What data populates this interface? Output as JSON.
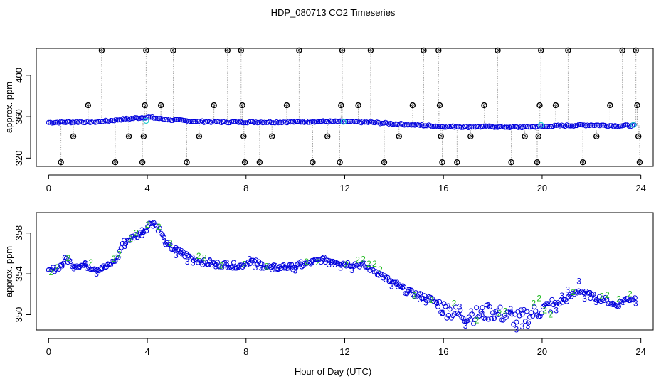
{
  "title": "HDP_080713  CO2 Timeseries",
  "xlabel": "Hour of Day (UTC)",
  "colors": {
    "blue": "#0000dd",
    "cyan": "#22cccc",
    "green": "#22bb22",
    "black": "#000000",
    "gray": "#888888"
  },
  "chart_data": [
    {
      "type": "scatter",
      "panel": "top",
      "ylabel": "approx. ppm",
      "xlim": [
        -0.5,
        24.5
      ],
      "ylim": [
        312,
        426
      ],
      "xticks": [
        0,
        4,
        8,
        12,
        16,
        20,
        24
      ],
      "yticks": [
        320,
        360,
        400
      ],
      "outlier_levels": [
        316,
        341,
        371,
        424
      ],
      "outliers": [
        {
          "x": 0.5,
          "y": 316
        },
        {
          "x": 1.0,
          "y": 341
        },
        {
          "x": 1.6,
          "y": 371
        },
        {
          "x": 2.15,
          "y": 424
        },
        {
          "x": 2.7,
          "y": 316
        },
        {
          "x": 3.25,
          "y": 341
        },
        {
          "x": 3.8,
          "y": 316
        },
        {
          "x": 3.85,
          "y": 341
        },
        {
          "x": 3.9,
          "y": 371
        },
        {
          "x": 3.95,
          "y": 424
        },
        {
          "x": 4.55,
          "y": 371
        },
        {
          "x": 5.05,
          "y": 424
        },
        {
          "x": 5.6,
          "y": 316
        },
        {
          "x": 6.1,
          "y": 341
        },
        {
          "x": 6.7,
          "y": 371
        },
        {
          "x": 7.25,
          "y": 424
        },
        {
          "x": 7.8,
          "y": 424
        },
        {
          "x": 7.85,
          "y": 371
        },
        {
          "x": 7.9,
          "y": 341
        },
        {
          "x": 7.95,
          "y": 316
        },
        {
          "x": 8.55,
          "y": 316
        },
        {
          "x": 9.05,
          "y": 341
        },
        {
          "x": 9.65,
          "y": 371
        },
        {
          "x": 10.15,
          "y": 424
        },
        {
          "x": 10.7,
          "y": 316
        },
        {
          "x": 11.3,
          "y": 341
        },
        {
          "x": 11.8,
          "y": 316
        },
        {
          "x": 11.85,
          "y": 371
        },
        {
          "x": 11.9,
          "y": 424
        },
        {
          "x": 12.55,
          "y": 371
        },
        {
          "x": 13.05,
          "y": 424
        },
        {
          "x": 13.6,
          "y": 316
        },
        {
          "x": 14.2,
          "y": 341
        },
        {
          "x": 14.75,
          "y": 371
        },
        {
          "x": 15.2,
          "y": 424
        },
        {
          "x": 15.8,
          "y": 424
        },
        {
          "x": 15.85,
          "y": 371
        },
        {
          "x": 15.9,
          "y": 341
        },
        {
          "x": 15.95,
          "y": 316
        },
        {
          "x": 16.55,
          "y": 316
        },
        {
          "x": 17.1,
          "y": 341
        },
        {
          "x": 17.65,
          "y": 371
        },
        {
          "x": 18.2,
          "y": 424
        },
        {
          "x": 18.75,
          "y": 316
        },
        {
          "x": 19.3,
          "y": 341
        },
        {
          "x": 19.8,
          "y": 316
        },
        {
          "x": 19.85,
          "y": 341
        },
        {
          "x": 19.9,
          "y": 371
        },
        {
          "x": 19.95,
          "y": 424
        },
        {
          "x": 20.55,
          "y": 371
        },
        {
          "x": 21.05,
          "y": 424
        },
        {
          "x": 21.65,
          "y": 316
        },
        {
          "x": 22.2,
          "y": 341
        },
        {
          "x": 22.75,
          "y": 371
        },
        {
          "x": 23.25,
          "y": 424
        },
        {
          "x": 23.8,
          "y": 424
        },
        {
          "x": 23.85,
          "y": 371
        },
        {
          "x": 23.9,
          "y": 341
        },
        {
          "x": 23.95,
          "y": 316
        }
      ],
      "highlights": [
        {
          "x": 3.95,
          "y": 356
        },
        {
          "x": 11.95,
          "y": 355
        },
        {
          "x": 19.95,
          "y": 352
        },
        {
          "x": 23.7,
          "y": 352
        }
      ],
      "baseline": [
        {
          "x": 0,
          "y": 354.4
        },
        {
          "x": 1,
          "y": 354.8
        },
        {
          "x": 2,
          "y": 354.9
        },
        {
          "x": 3,
          "y": 357.5
        },
        {
          "x": 4,
          "y": 359.5
        },
        {
          "x": 5,
          "y": 356.8
        },
        {
          "x": 6,
          "y": 355.3
        },
        {
          "x": 7,
          "y": 354.8
        },
        {
          "x": 8,
          "y": 354.8
        },
        {
          "x": 9,
          "y": 354.7
        },
        {
          "x": 10,
          "y": 354.9
        },
        {
          "x": 11,
          "y": 355.4
        },
        {
          "x": 12,
          "y": 355.1
        },
        {
          "x": 13,
          "y": 354.5
        },
        {
          "x": 14,
          "y": 353.2
        },
        {
          "x": 15,
          "y": 351.8
        },
        {
          "x": 16,
          "y": 350.6
        },
        {
          "x": 17,
          "y": 350.2
        },
        {
          "x": 18,
          "y": 350.4
        },
        {
          "x": 19,
          "y": 349.8
        },
        {
          "x": 20,
          "y": 350.6
        },
        {
          "x": 21,
          "y": 351.4
        },
        {
          "x": 22,
          "y": 352.0
        },
        {
          "x": 23,
          "y": 351.2
        },
        {
          "x": 23.8,
          "y": 351.5
        }
      ]
    },
    {
      "type": "scatter",
      "panel": "bottom",
      "ylabel": "approx. ppm",
      "xlim": [
        -0.5,
        24.5
      ],
      "ylim": [
        348.5,
        360
      ],
      "xticks": [
        0,
        4,
        8,
        12,
        16,
        20,
        24
      ],
      "yticks": [
        350,
        354,
        358
      ],
      "markers": [
        "3",
        "2"
      ],
      "trend": [
        {
          "x": 0,
          "y": 354.2
        },
        {
          "x": 0.5,
          "y": 354.8
        },
        {
          "x": 0.7,
          "y": 355.5
        },
        {
          "x": 1,
          "y": 354.9
        },
        {
          "x": 1.5,
          "y": 354.8
        },
        {
          "x": 2,
          "y": 354.5
        },
        {
          "x": 2.4,
          "y": 354.7
        },
        {
          "x": 2.8,
          "y": 355.6
        },
        {
          "x": 3,
          "y": 357.0
        },
        {
          "x": 3.5,
          "y": 357.7
        },
        {
          "x": 3.8,
          "y": 358.0
        },
        {
          "x": 4.2,
          "y": 359.2
        },
        {
          "x": 4.5,
          "y": 358.3
        },
        {
          "x": 4.8,
          "y": 356.8
        },
        {
          "x": 5.5,
          "y": 355.9
        },
        {
          "x": 6.3,
          "y": 355.1
        },
        {
          "x": 7,
          "y": 354.9
        },
        {
          "x": 7.8,
          "y": 354.8
        },
        {
          "x": 8.2,
          "y": 355.3
        },
        {
          "x": 8.6,
          "y": 354.9
        },
        {
          "x": 9,
          "y": 354.6
        },
        {
          "x": 10,
          "y": 354.7
        },
        {
          "x": 10.5,
          "y": 355.0
        },
        {
          "x": 11,
          "y": 355.4
        },
        {
          "x": 11.6,
          "y": 355.3
        },
        {
          "x": 12,
          "y": 355.0
        },
        {
          "x": 12.7,
          "y": 354.9
        },
        {
          "x": 13.3,
          "y": 354.2
        },
        {
          "x": 14,
          "y": 353.0
        },
        {
          "x": 14.5,
          "y": 352.3
        },
        {
          "x": 15,
          "y": 351.9
        },
        {
          "x": 15.5,
          "y": 351.5
        },
        {
          "x": 16,
          "y": 350.6
        },
        {
          "x": 16.6,
          "y": 350.0
        },
        {
          "x": 17.2,
          "y": 349.9
        },
        {
          "x": 18,
          "y": 350.3
        },
        {
          "x": 18.5,
          "y": 349.9
        },
        {
          "x": 19,
          "y": 349.6
        },
        {
          "x": 19.5,
          "y": 350.0
        },
        {
          "x": 20,
          "y": 350.5
        },
        {
          "x": 20.5,
          "y": 351.0
        },
        {
          "x": 21,
          "y": 351.5
        },
        {
          "x": 21.5,
          "y": 352.4
        },
        {
          "x": 22,
          "y": 351.8
        },
        {
          "x": 22.5,
          "y": 351.5
        },
        {
          "x": 23,
          "y": 350.9
        },
        {
          "x": 23.4,
          "y": 351.5
        },
        {
          "x": 23.8,
          "y": 351.6
        }
      ]
    }
  ]
}
